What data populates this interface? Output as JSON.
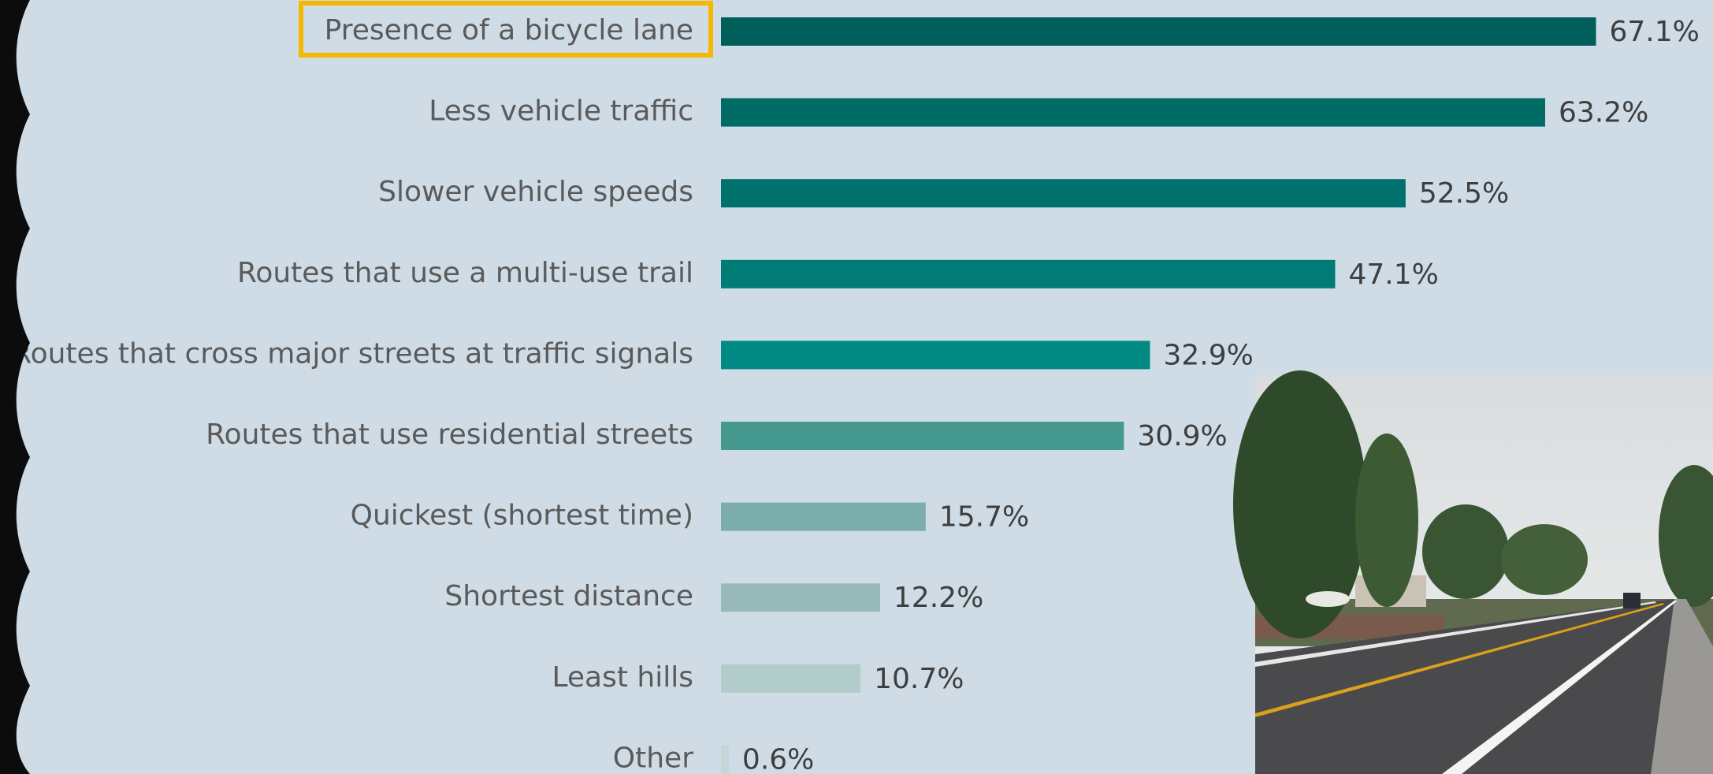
{
  "chart_data": {
    "type": "bar",
    "orientation": "horizontal",
    "categories": [
      "Presence of a bicycle lane",
      "Less vehicle traffic",
      "Slower vehicle speeds",
      "Routes that use a multi-use trail",
      "Routes that cross major streets at traffic signals",
      "Routes that use residential streets",
      "Quickest (shortest time)",
      "Shortest distance",
      "Least hills",
      "Other"
    ],
    "values": [
      67.1,
      63.2,
      52.5,
      47.1,
      32.9,
      30.9,
      15.7,
      12.2,
      10.7,
      0.6
    ],
    "value_labels": [
      "67.1%",
      "63.2%",
      "52.5%",
      "47.1%",
      "32.9%",
      "30.9%",
      "15.7%",
      "12.2%",
      "10.7%",
      "0.6%"
    ],
    "colors": [
      "#005f5a",
      "#006a65",
      "#00716c",
      "#007b75",
      "#008a83",
      "#46998f",
      "#7badaa",
      "#97bab9",
      "#b2cbcb",
      "#c6d6d8"
    ]
  }
}
